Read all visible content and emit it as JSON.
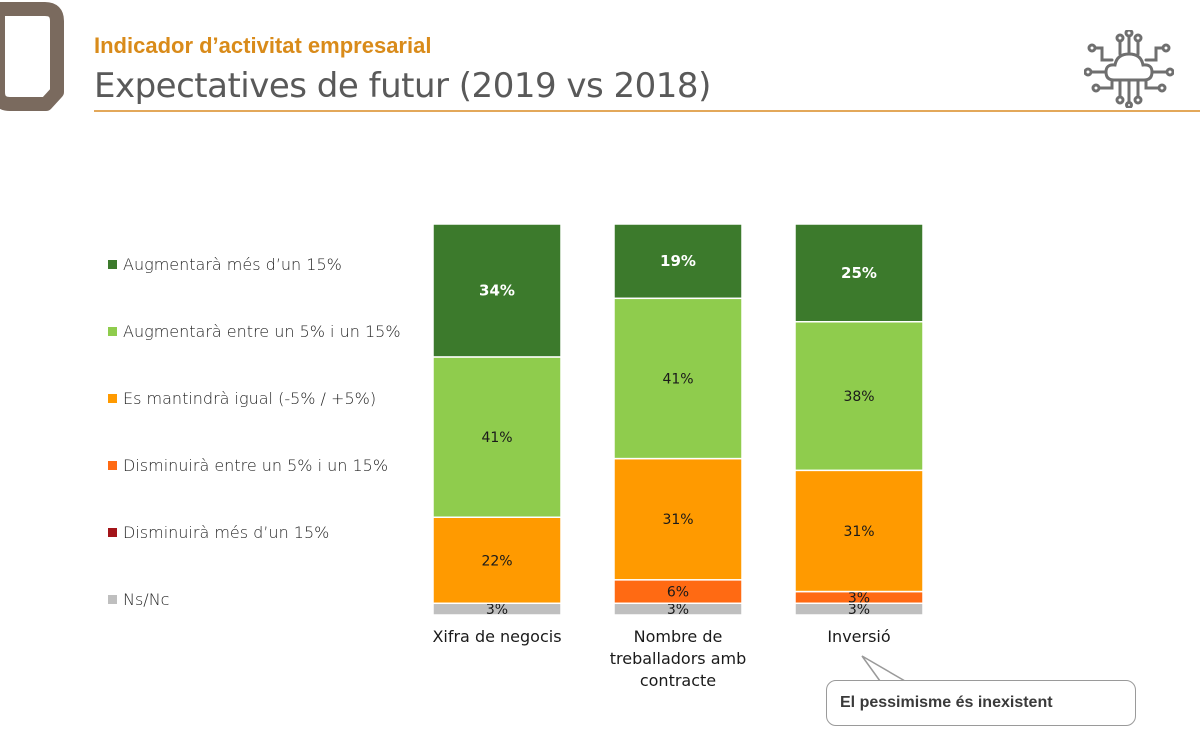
{
  "header": {
    "subtitle": "Indicador d’activitat empresarial",
    "title": "Expectatives de futur (2019 vs 2018)"
  },
  "icons": {
    "logo": "rounded-corner-logo-mark",
    "circuit": "cloud-circuit-icon"
  },
  "colors": {
    "accent": "#d98b1a",
    "logo": "#7a6a5e",
    "dark_green": "#3c7a2c",
    "light_green": "#8fcc4d",
    "orange": "#ff9a00",
    "dark_orange": "#ff6a13",
    "dark_red": "#a31419",
    "gray": "#bfbfbf"
  },
  "legend": [
    {
      "label": "Augmentarà més d’un 15%",
      "color": "#3c7a2c"
    },
    {
      "label": "Augmentarà entre un 5% i un 15%",
      "color": "#8fcc4d"
    },
    {
      "label": "Es mantindrà igual (-5% / +5%)",
      "color": "#ff9a00"
    },
    {
      "label": "Disminuirà entre un 5% i un 15%",
      "color": "#ff6a13"
    },
    {
      "label": "Disminuirà més d’un 15%",
      "color": "#a31419"
    },
    {
      "label": "Ns/Nc",
      "color": "#bfbfbf"
    }
  ],
  "chart_data": {
    "type": "bar",
    "stacked": true,
    "orientation": "vertical",
    "ylim": [
      0,
      100
    ],
    "categories": [
      "Xifra de negocis",
      "Nombre de treballadors amb contracte",
      "Inversió"
    ],
    "category_lines": [
      [
        "Xifra de negocis"
      ],
      [
        "Nombre de",
        "treballadors amb",
        "contracte"
      ],
      [
        "Inversió"
      ]
    ],
    "series": [
      {
        "name": "Augmentarà més d’un 15%",
        "color": "#3c7a2c",
        "label_color": "#ffffff",
        "bold": true,
        "values": [
          34,
          19,
          25
        ],
        "labels": [
          "34%",
          "19%",
          "25%"
        ]
      },
      {
        "name": "Augmentarà entre un 5% i un 15%",
        "color": "#8fcc4d",
        "label_color": "#1a1a1a",
        "bold": false,
        "values": [
          41,
          41,
          38
        ],
        "labels": [
          "41%",
          "41%",
          "38%"
        ]
      },
      {
        "name": "Es mantindrà igual (-5% / +5%)",
        "color": "#ff9a00",
        "label_color": "#1a1a1a",
        "bold": false,
        "values": [
          22,
          31,
          31
        ],
        "labels": [
          "22%",
          "31%",
          "31%"
        ]
      },
      {
        "name": "Disminuirà entre un 5% i un 15%",
        "color": "#ff6a13",
        "label_color": "#1a1a1a",
        "bold": false,
        "values": [
          0,
          6,
          3
        ],
        "labels": [
          "",
          "6%",
          "3%"
        ]
      },
      {
        "name": "Disminuirà més d’un 15%",
        "color": "#a31419",
        "label_color": "#ffffff",
        "bold": false,
        "values": [
          0,
          0,
          0
        ],
        "labels": [
          "",
          "",
          ""
        ]
      },
      {
        "name": "Ns/Nc",
        "color": "#bfbfbf",
        "label_color": "#1a1a1a",
        "bold": false,
        "values": [
          3,
          3,
          3
        ],
        "labels": [
          "3%",
          "3%",
          "3%"
        ]
      }
    ]
  },
  "callout": {
    "text": "El pessimisme és inexistent"
  }
}
